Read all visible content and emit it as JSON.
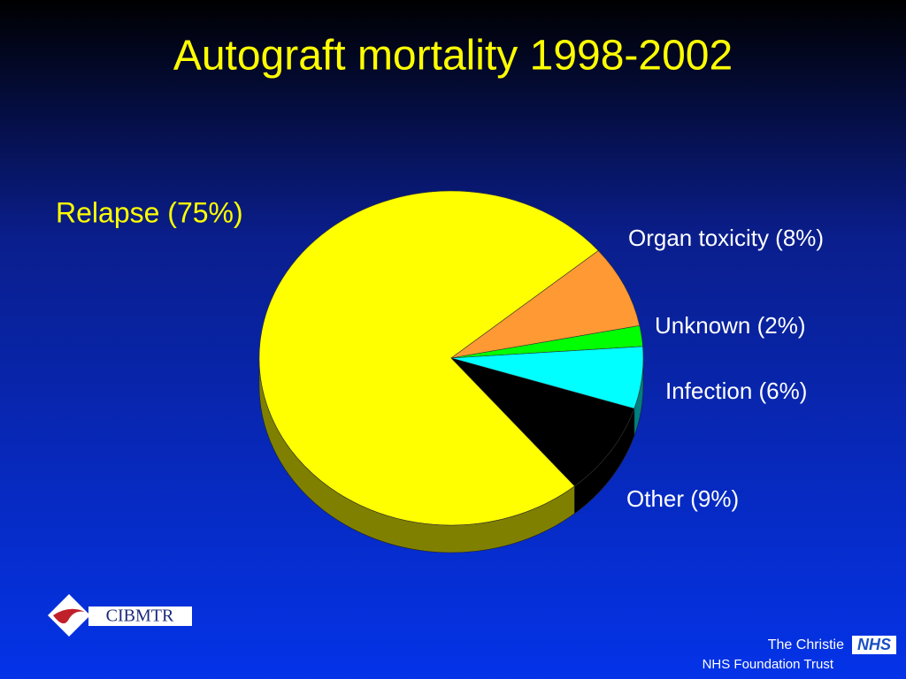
{
  "chart_data": {
    "type": "pie",
    "title": "Autograft mortality 1998-2002",
    "categories": [
      "Relapse (75%)",
      "Organ toxicity (8%)",
      "Unknown (2%)",
      "Infection (6%)",
      "Other (9%)"
    ],
    "values": [
      75,
      8,
      2,
      6,
      9
    ],
    "colors": [
      "#ffff00",
      "#ff9933",
      "#00ff00",
      "#00ffff",
      "#000000"
    ]
  },
  "branding": {
    "left_logo": "CIBMTR",
    "right_logo": "NHS",
    "trust_name": "The Christie",
    "trust_type": "NHS Foundation Trust"
  }
}
